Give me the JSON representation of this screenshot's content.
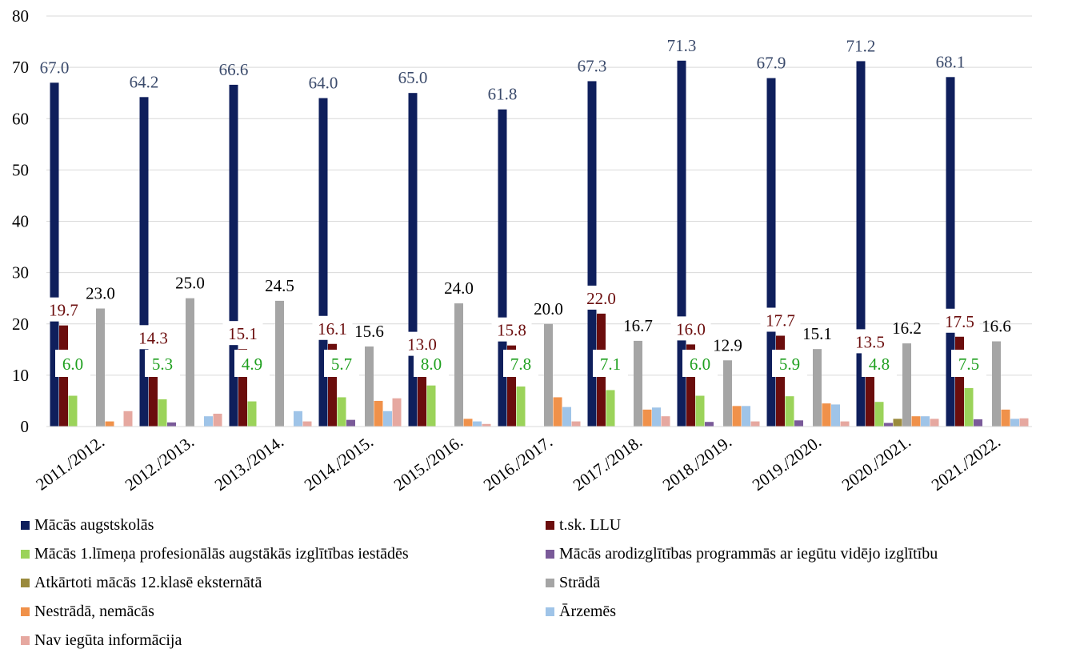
{
  "chart_data": {
    "type": "bar",
    "title": "",
    "xlabel": "",
    "ylabel": "",
    "ylim": [
      0,
      80
    ],
    "yticks": [
      0,
      10,
      20,
      30,
      40,
      50,
      60,
      70,
      80
    ],
    "grid": true,
    "legend_position": "bottom",
    "categories": [
      "2011./2012.",
      "2012./2013.",
      "2013./2014.",
      "2014./2015.",
      "2015./2016.",
      "2016./2017.",
      "2017./2018.",
      "2018./2019.",
      "2019./2020.",
      "2020./2021.",
      "2021./2022."
    ],
    "series": [
      {
        "name": "Mācās augstskolās",
        "color": "#0f1f5c",
        "label_color": "#3a4a6b",
        "labels": true,
        "values": [
          67.0,
          64.2,
          66.6,
          64.0,
          65.0,
          61.8,
          67.3,
          71.3,
          67.9,
          71.2,
          68.1
        ]
      },
      {
        "name": "t.sk. LLU",
        "color": "#6b0d0d",
        "label_color": "#6b0d0d",
        "labels": true,
        "values": [
          19.7,
          14.3,
          15.1,
          16.1,
          13.0,
          15.8,
          22.0,
          16.0,
          17.7,
          13.5,
          17.5
        ]
      },
      {
        "name": "Mācās 1.līmeņa profesionālās augstākās izglītības iestādēs",
        "color": "#9bd35a",
        "label_color": "#1fa01f",
        "labels": true,
        "label_box": true,
        "values": [
          6.0,
          5.3,
          4.9,
          5.7,
          8.0,
          7.8,
          7.1,
          6.0,
          5.9,
          4.8,
          7.5
        ]
      },
      {
        "name": "Mācās arodizglītības programmās ar iegūtu vidējo izglītību",
        "color": "#7a5a99",
        "labels": false,
        "values": [
          0,
          0.8,
          0,
          1.3,
          0,
          0,
          0,
          0.9,
          1.2,
          0.7,
          1.4
        ]
      },
      {
        "name": "Atkārtoti mācās 12.klasē eksternātā",
        "color": "#9a8a3c",
        "labels": false,
        "values": [
          0,
          0,
          0,
          0,
          0,
          0,
          0,
          0,
          0,
          1.5,
          0
        ]
      },
      {
        "name": "Strādā",
        "color": "#a5a5a5",
        "label_color": "#000000",
        "labels": true,
        "values": [
          23.0,
          25.0,
          24.5,
          15.6,
          24.0,
          20.0,
          16.7,
          12.9,
          15.1,
          16.2,
          16.6
        ]
      },
      {
        "name": "Nestrādā, nemācās",
        "color": "#f0914a",
        "labels": false,
        "values": [
          1.0,
          0,
          0,
          5.0,
          1.5,
          5.7,
          3.3,
          4.0,
          4.5,
          2.0,
          3.3
        ]
      },
      {
        "name": "Ārzemēs",
        "color": "#9fc4e8",
        "labels": false,
        "values": [
          0,
          2.0,
          3.0,
          3.0,
          1.0,
          3.8,
          3.7,
          4.0,
          4.3,
          2.0,
          1.5
        ]
      },
      {
        "name": "Nav iegūta informācija",
        "color": "#e6a8a0",
        "labels": false,
        "values": [
          3.0,
          2.5,
          1.0,
          5.5,
          0.5,
          1.0,
          2.0,
          1.0,
          1.0,
          1.5,
          1.6
        ]
      }
    ]
  }
}
